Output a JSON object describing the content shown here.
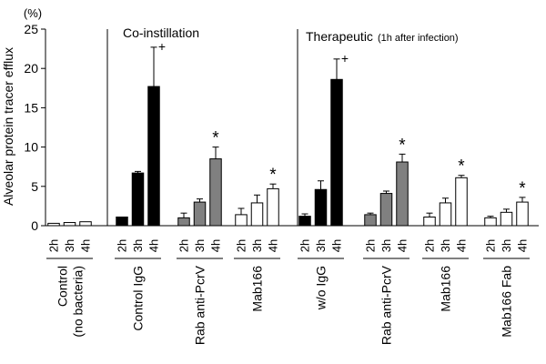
{
  "chart_data": {
    "type": "bar",
    "ylabel": "Alveolar protein tracer efflux",
    "yunit": "(%)",
    "ylim": [
      0,
      25
    ],
    "yticks": [
      0,
      5,
      10,
      15,
      20,
      25
    ],
    "time_labels": [
      "2h",
      "3h",
      "4h"
    ],
    "panels": [
      {
        "title": "",
        "subtitle": ""
      },
      {
        "title": "Co-instillation",
        "subtitle": ""
      },
      {
        "title": "Therapeutic",
        "subtitle": "(1h after infection)"
      }
    ],
    "groups": [
      {
        "label": "Control",
        "label2": "(no bacteria)",
        "panel": 0,
        "fill": "#ffffff",
        "values": [
          0.3,
          0.4,
          0.5
        ],
        "errors": [
          0,
          0,
          0
        ],
        "marks": [
          "",
          "",
          ""
        ]
      },
      {
        "label": "Control IgG",
        "label2": "",
        "panel": 1,
        "fill": "#000000",
        "values": [
          1.1,
          6.7,
          17.7
        ],
        "errors": [
          0,
          0.2,
          5.0
        ],
        "marks": [
          "",
          "",
          "+"
        ]
      },
      {
        "label": "Rab anti-PcrV",
        "label2": "",
        "panel": 1,
        "fill": "#808080",
        "values": [
          1.0,
          3.0,
          8.5
        ],
        "errors": [
          0.6,
          0.4,
          1.5
        ],
        "marks": [
          "",
          "",
          "*"
        ]
      },
      {
        "label": "Mab166",
        "label2": "",
        "panel": 1,
        "fill": "#ffffff",
        "values": [
          1.4,
          2.9,
          4.7
        ],
        "errors": [
          0.8,
          1.0,
          0.6
        ],
        "marks": [
          "",
          "",
          "*"
        ]
      },
      {
        "label": "w/o IgG",
        "label2": "",
        "panel": 2,
        "fill": "#000000",
        "values": [
          1.2,
          4.6,
          18.6
        ],
        "errors": [
          0.3,
          1.1,
          2.6
        ],
        "marks": [
          "",
          "",
          "+"
        ]
      },
      {
        "label": "Rab anti-PcrV",
        "label2": "",
        "panel": 2,
        "fill": "#808080",
        "values": [
          1.4,
          4.1,
          8.1
        ],
        "errors": [
          0.2,
          0.3,
          1.0
        ],
        "marks": [
          "",
          "",
          "*"
        ]
      },
      {
        "label": "Mab166",
        "label2": "",
        "panel": 2,
        "fill": "#ffffff",
        "values": [
          1.1,
          2.9,
          6.1
        ],
        "errors": [
          0.5,
          0.6,
          0.3
        ],
        "marks": [
          "",
          "",
          "*"
        ]
      },
      {
        "label": "Mab166 Fab",
        "label2": "",
        "panel": 2,
        "fill": "#ffffff",
        "values": [
          1.0,
          1.7,
          3.0
        ],
        "errors": [
          0.2,
          0.4,
          0.6
        ],
        "marks": [
          "",
          "",
          "*"
        ]
      }
    ]
  }
}
